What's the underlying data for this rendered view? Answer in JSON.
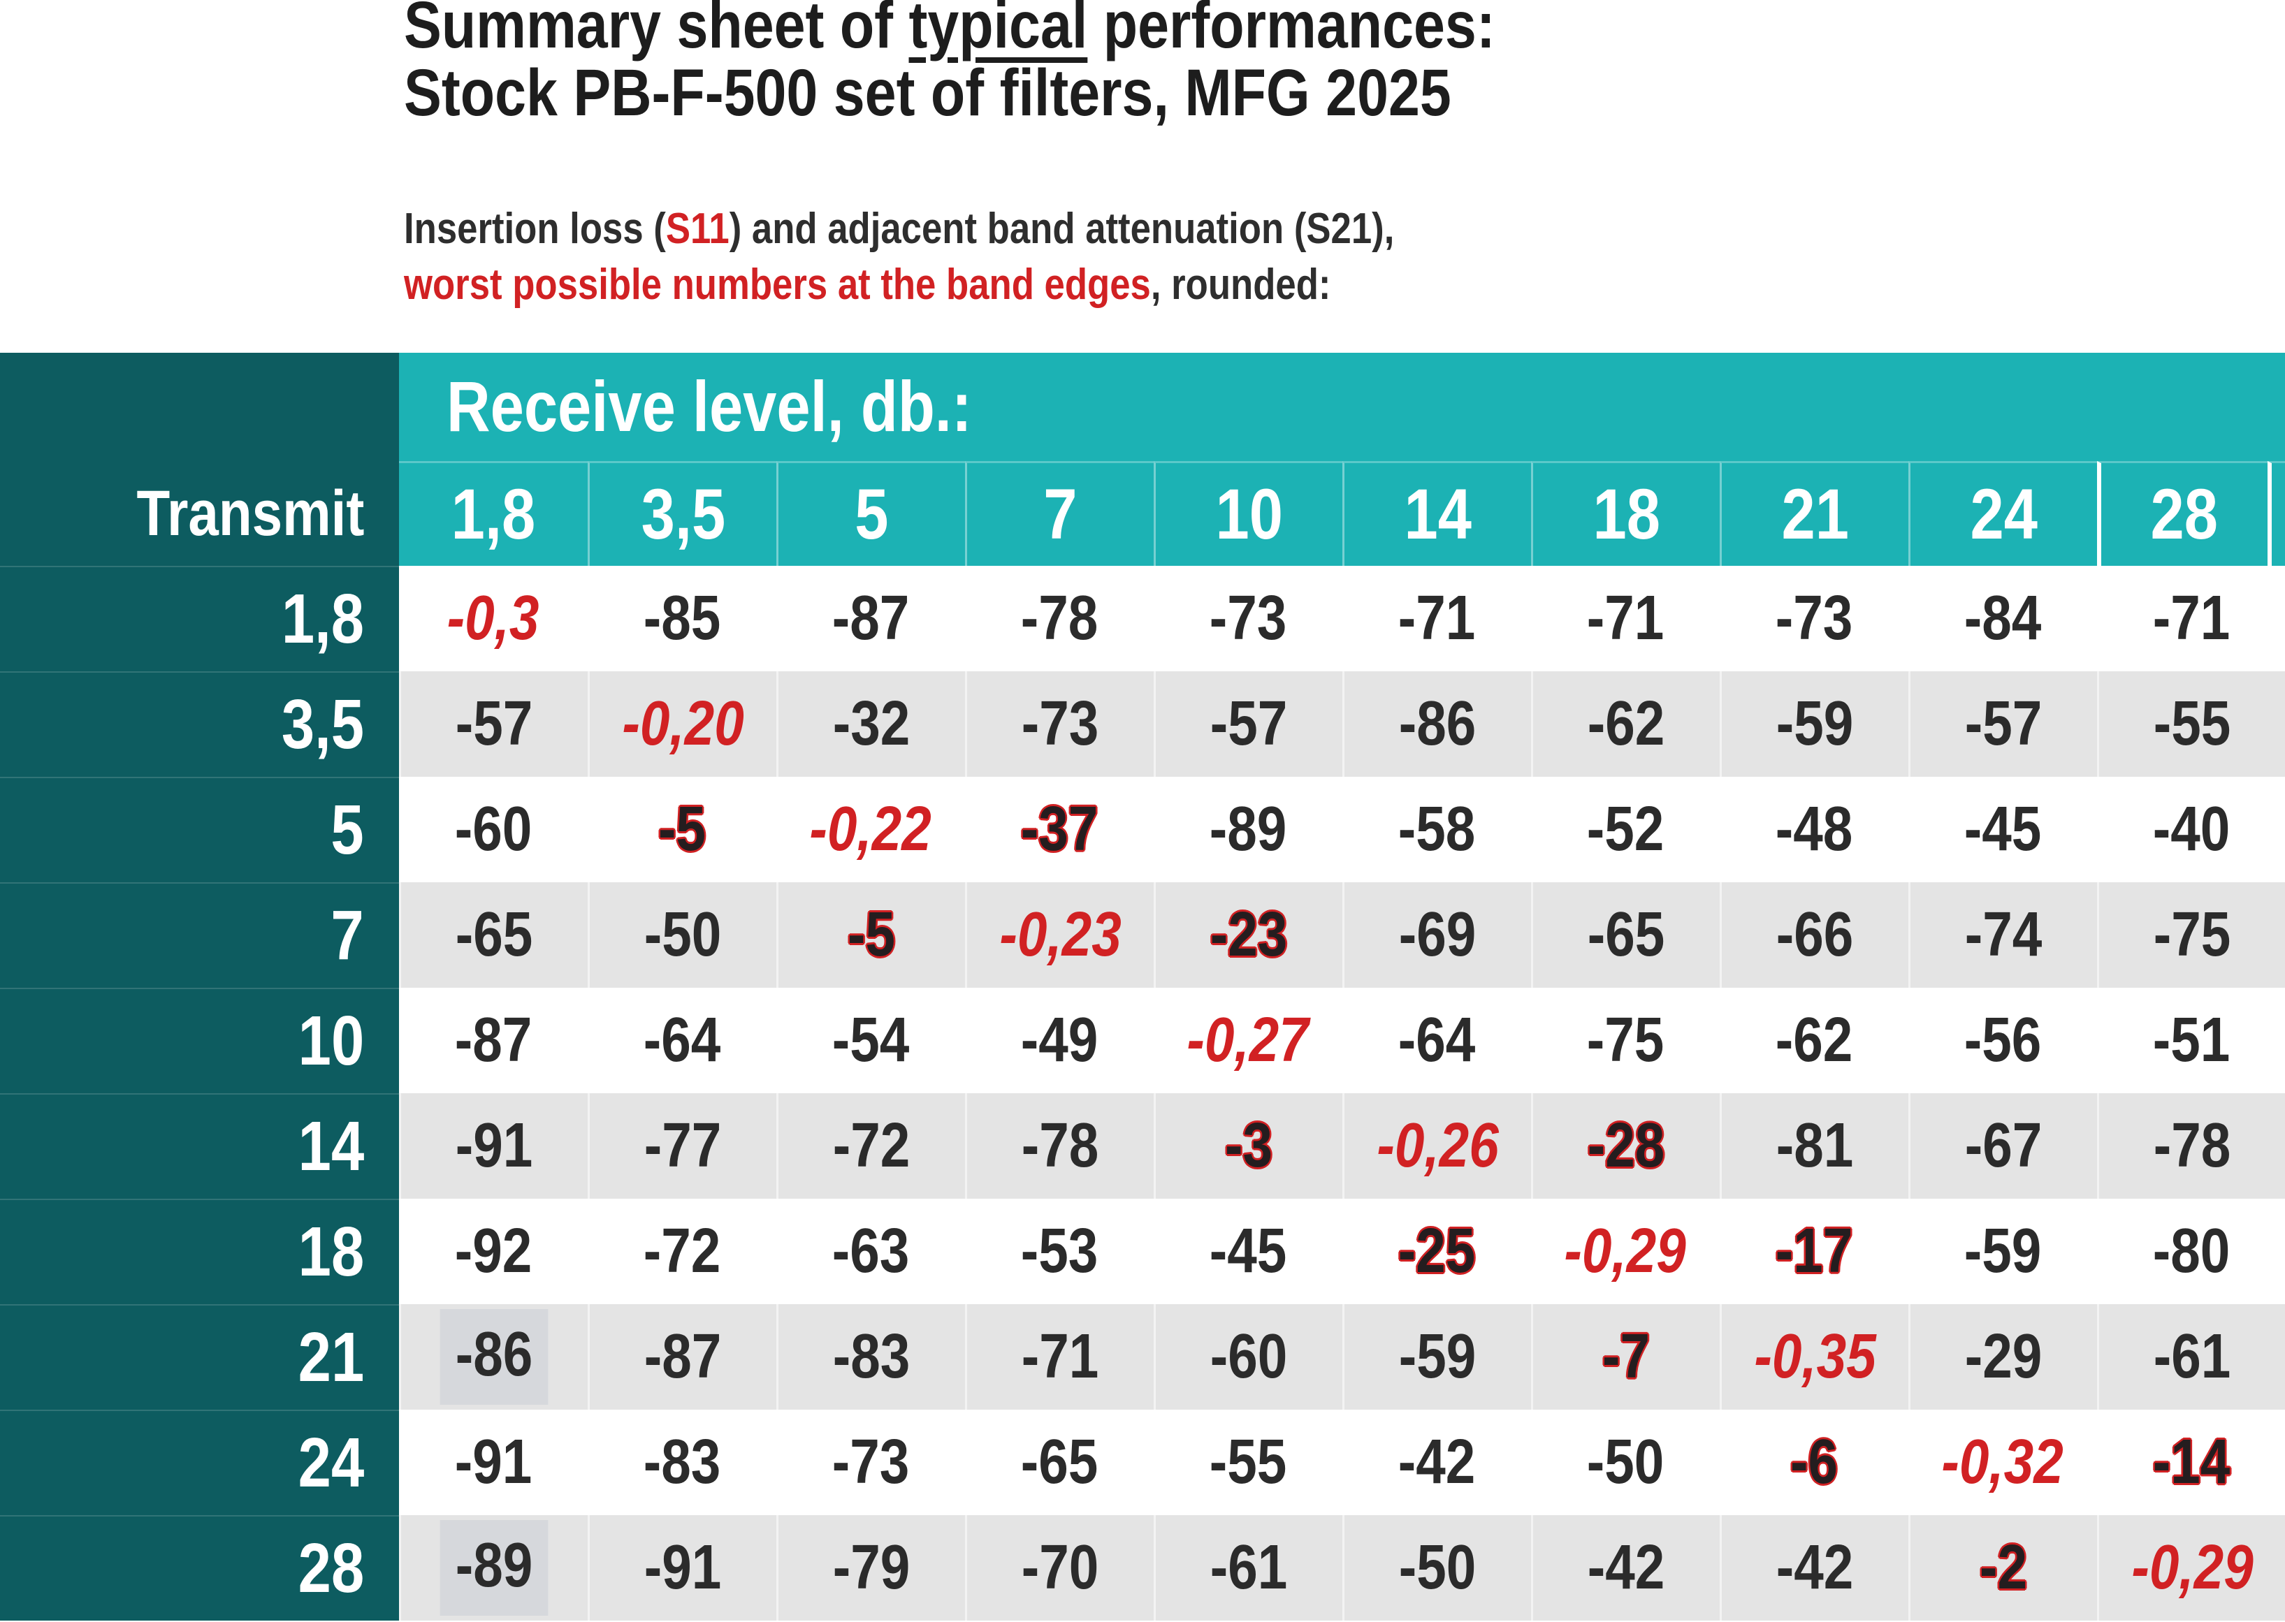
{
  "title": {
    "part1": "Summary sheet of ",
    "underlined": "typical",
    "part3": " performances:",
    "line2": "Stock PB-F-500 set of filters, MFG 2025"
  },
  "subtitle": {
    "line1_prefix": "Insertion loss (",
    "s11": "S11",
    "line1_suffix": ") and adjacent band attenuation (S21),",
    "red_phrase": "worst possible numbers at the band edges",
    "line2_suffix": ", rounded:"
  },
  "table": {
    "corner_label": "Transmit",
    "receive_header": "Receive level, db.:",
    "columns": [
      "1,8",
      "3,5",
      "5",
      "7",
      "10",
      "14",
      "18",
      "21",
      "24",
      "28"
    ],
    "rows": [
      {
        "label": "1,8",
        "cells": [
          {
            "v": "-0,3",
            "s": "diag"
          },
          {
            "v": "-85"
          },
          {
            "v": "-87"
          },
          {
            "v": "-78"
          },
          {
            "v": "-73"
          },
          {
            "v": "-71"
          },
          {
            "v": "-71"
          },
          {
            "v": "-73"
          },
          {
            "v": "-84"
          },
          {
            "v": "-71"
          }
        ]
      },
      {
        "label": "3,5",
        "cells": [
          {
            "v": "-57"
          },
          {
            "v": "-0,20",
            "s": "diag"
          },
          {
            "v": "-32"
          },
          {
            "v": "-73"
          },
          {
            "v": "-57"
          },
          {
            "v": "-86"
          },
          {
            "v": "-62"
          },
          {
            "v": "-59"
          },
          {
            "v": "-57"
          },
          {
            "v": "-55"
          }
        ]
      },
      {
        "label": "5",
        "cells": [
          {
            "v": "-60"
          },
          {
            "v": "-5",
            "s": "near"
          },
          {
            "v": "-0,22",
            "s": "diag"
          },
          {
            "v": "-37",
            "s": "near"
          },
          {
            "v": "-89"
          },
          {
            "v": "-58"
          },
          {
            "v": "-52"
          },
          {
            "v": "-48"
          },
          {
            "v": "-45"
          },
          {
            "v": "-40"
          }
        ]
      },
      {
        "label": "7",
        "cells": [
          {
            "v": "-65"
          },
          {
            "v": "-50"
          },
          {
            "v": "-5",
            "s": "near"
          },
          {
            "v": "-0,23",
            "s": "diag"
          },
          {
            "v": "-23",
            "s": "near"
          },
          {
            "v": "-69"
          },
          {
            "v": "-65"
          },
          {
            "v": "-66"
          },
          {
            "v": "-74"
          },
          {
            "v": "-75"
          }
        ]
      },
      {
        "label": "10",
        "cells": [
          {
            "v": "-87"
          },
          {
            "v": "-64"
          },
          {
            "v": "-54"
          },
          {
            "v": "-49"
          },
          {
            "v": "-0,27",
            "s": "diag"
          },
          {
            "v": "-64"
          },
          {
            "v": "-75"
          },
          {
            "v": "-62"
          },
          {
            "v": "-56"
          },
          {
            "v": "-51"
          }
        ]
      },
      {
        "label": "14",
        "cells": [
          {
            "v": "-91"
          },
          {
            "v": "-77"
          },
          {
            "v": "-72"
          },
          {
            "v": "-78"
          },
          {
            "v": "-3",
            "s": "near"
          },
          {
            "v": "-0,26",
            "s": "diag"
          },
          {
            "v": "-28",
            "s": "near"
          },
          {
            "v": "-81"
          },
          {
            "v": "-67"
          },
          {
            "v": "-78"
          }
        ]
      },
      {
        "label": "18",
        "cells": [
          {
            "v": "-92"
          },
          {
            "v": "-72"
          },
          {
            "v": "-63"
          },
          {
            "v": "-53"
          },
          {
            "v": "-45"
          },
          {
            "v": "-25",
            "s": "near"
          },
          {
            "v": "-0,29",
            "s": "diag"
          },
          {
            "v": "-17",
            "s": "near"
          },
          {
            "v": "-59"
          },
          {
            "v": "-80"
          }
        ]
      },
      {
        "label": "21",
        "cells": [
          {
            "v": "-86",
            "s": "patch"
          },
          {
            "v": "-87"
          },
          {
            "v": "-83"
          },
          {
            "v": "-71"
          },
          {
            "v": "-60"
          },
          {
            "v": "-59"
          },
          {
            "v": "-7",
            "s": "near"
          },
          {
            "v": "-0,35",
            "s": "diag"
          },
          {
            "v": "-29"
          },
          {
            "v": "-61"
          }
        ]
      },
      {
        "label": "24",
        "cells": [
          {
            "v": "-91"
          },
          {
            "v": "-83"
          },
          {
            "v": "-73"
          },
          {
            "v": "-65"
          },
          {
            "v": "-55"
          },
          {
            "v": "-42"
          },
          {
            "v": "-50"
          },
          {
            "v": "-6",
            "s": "near"
          },
          {
            "v": "-0,32",
            "s": "diag"
          },
          {
            "v": "-14",
            "s": "near"
          }
        ]
      },
      {
        "label": "28",
        "cells": [
          {
            "v": "-89",
            "s": "patch"
          },
          {
            "v": "-91"
          },
          {
            "v": "-79"
          },
          {
            "v": "-70"
          },
          {
            "v": "-61"
          },
          {
            "v": "-50"
          },
          {
            "v": "-42"
          },
          {
            "v": "-42"
          },
          {
            "v": "-2",
            "s": "near"
          },
          {
            "v": "-0,29",
            "s": "diag"
          }
        ]
      }
    ]
  },
  "colors": {
    "teal": "#1cb2b4",
    "dark_teal": "#0d5c60",
    "row_alt": "#e4e4e4",
    "red": "#d12123",
    "text": "#2b2b2b",
    "near_text": "#241d1f",
    "patch": "#d6d8dc",
    "title": "#1d1d1d"
  }
}
